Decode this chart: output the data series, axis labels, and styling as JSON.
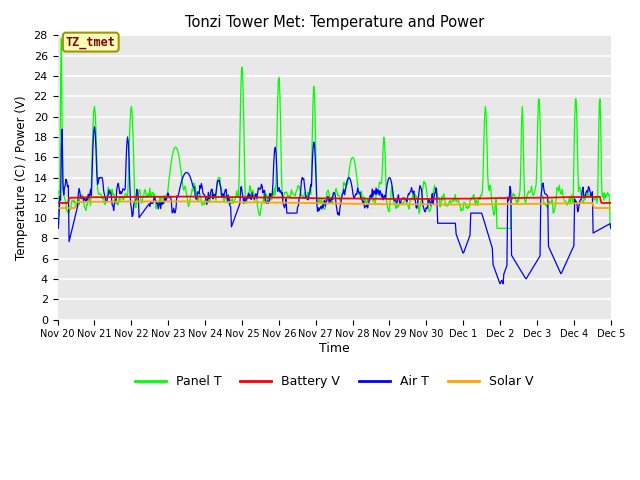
{
  "title": "Tonzi Tower Met: Temperature and Power",
  "xlabel": "Time",
  "ylabel": "Temperature (C) / Power (V)",
  "ylim": [
    0,
    28
  ],
  "yticks": [
    0,
    2,
    4,
    6,
    8,
    10,
    12,
    14,
    16,
    18,
    20,
    22,
    24,
    26,
    28
  ],
  "xtick_labels": [
    "Nov 20",
    "Nov 21",
    "Nov 22",
    "Nov 23",
    "Nov 24",
    "Nov 25",
    "Nov 26",
    "Nov 27",
    "Nov 28",
    "Nov 29",
    "Nov 30",
    "Dec 1",
    "Dec 2",
    "Dec 3",
    "Dec 4",
    "Dec 5"
  ],
  "colors": {
    "panel_t": "#00FF00",
    "battery_v": "#FF0000",
    "air_t": "#0000FF",
    "solar_v": "#FFA500"
  },
  "legend_labels": [
    "Panel T",
    "Battery V",
    "Air T",
    "Solar V"
  ],
  "annotation_text": "TZ_tmet",
  "annotation_bg": "#FFFFBB",
  "annotation_border": "#999900",
  "annotation_text_color": "#880000",
  "fig_facecolor": "#FFFFFF",
  "plot_facecolor": "#E8E8E8"
}
